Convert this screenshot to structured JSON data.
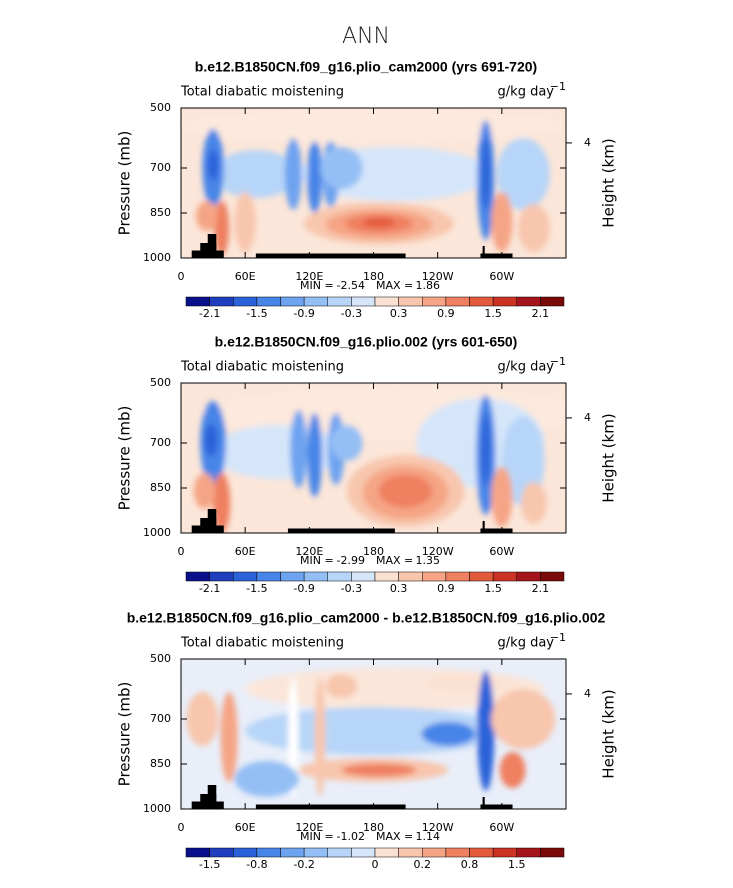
{
  "title": "ANN",
  "chart_data": [
    {
      "type": "contour",
      "title": "b.e12.B1850CN.f09_g16.plio_cam2000 (yrs 691-720)",
      "left_label": "Total diabatic moistening",
      "units": "g/kg day",
      "units_exponent": "−1",
      "ylabel": "Pressure (mb)",
      "y2label": "Height (km)",
      "xlim": [
        0,
        360
      ],
      "xticks": [
        0,
        {
          "value": 60,
          "label": "60E"
        },
        {
          "value": 120,
          "label": "120E"
        },
        180,
        {
          "value": 240,
          "label": "120W"
        },
        {
          "value": 300,
          "label": "60W"
        }
      ],
      "ylim": [
        1000,
        500
      ],
      "yticks": [
        500,
        700,
        850,
        1000
      ],
      "y2ticks": [
        4
      ],
      "min_label": "MIN =",
      "min": -2.54,
      "max_label": "MAX =",
      "max": 1.86,
      "colorbar": {
        "labels": [
          -2.1,
          -1.5,
          -0.9,
          -0.3,
          0.3,
          0.9,
          1.5,
          2.1
        ],
        "colors": [
          "#08108c",
          "#1f3fbf",
          "#2b62d9",
          "#4785e8",
          "#6ea3f0",
          "#94bff5",
          "#b7d5f8",
          "#d6e6fa",
          "#fbe1d2",
          "#f8c6ad",
          "#f5a585",
          "#ef8061",
          "#e45a3d",
          "#cc3324",
          "#a5141a",
          "#7a0a0a"
        ]
      }
    },
    {
      "type": "contour",
      "title": "b.e12.B1850CN.f09_g16.plio.002 (yrs 601-650)",
      "left_label": "Total diabatic moistening",
      "units": "g/kg day",
      "units_exponent": "−1",
      "ylabel": "Pressure (mb)",
      "y2label": "Height (km)",
      "xlim": [
        0,
        360
      ],
      "xticks": [
        0,
        {
          "value": 60,
          "label": "60E"
        },
        {
          "value": 120,
          "label": "120E"
        },
        180,
        {
          "value": 240,
          "label": "120W"
        },
        {
          "value": 300,
          "label": "60W"
        }
      ],
      "ylim": [
        1000,
        500
      ],
      "yticks": [
        500,
        700,
        850,
        1000
      ],
      "y2ticks": [
        4
      ],
      "min_label": "MIN =",
      "min": -2.99,
      "max_label": "MAX =",
      "max": 1.35,
      "colorbar": {
        "labels": [
          -2.1,
          -1.5,
          -0.9,
          -0.3,
          0.3,
          0.9,
          1.5,
          2.1
        ],
        "colors": [
          "#08108c",
          "#1f3fbf",
          "#2b62d9",
          "#4785e8",
          "#6ea3f0",
          "#94bff5",
          "#b7d5f8",
          "#d6e6fa",
          "#fbe1d2",
          "#f8c6ad",
          "#f5a585",
          "#ef8061",
          "#e45a3d",
          "#cc3324",
          "#a5141a",
          "#7a0a0a"
        ]
      }
    },
    {
      "type": "contour",
      "title": "b.e12.B1850CN.f09_g16.plio_cam2000 - b.e12.B1850CN.f09_g16.plio.002",
      "left_label": "Total diabatic moistening",
      "units": "g/kg day",
      "units_exponent": "−1",
      "ylabel": "Pressure (mb)",
      "y2label": "Height (km)",
      "xlim": [
        0,
        360
      ],
      "xticks": [
        0,
        {
          "value": 60,
          "label": "60E"
        },
        {
          "value": 120,
          "label": "120E"
        },
        180,
        {
          "value": 240,
          "label": "120W"
        },
        {
          "value": 300,
          "label": "60W"
        }
      ],
      "ylim": [
        1000,
        500
      ],
      "yticks": [
        500,
        700,
        850,
        1000
      ],
      "y2ticks": [
        4
      ],
      "min_label": "MIN =",
      "min": -1.02,
      "max_label": "MAX =",
      "max": 1.14,
      "colorbar": {
        "labels": [
          -1.5,
          -0.8,
          -0.2,
          0,
          0.2,
          0.8,
          1.5
        ],
        "colors": [
          "#08108c",
          "#1f3fbf",
          "#2b62d9",
          "#4785e8",
          "#6ea3f0",
          "#94bff5",
          "#b7d5f8",
          "#d6e6fa",
          "#fbe1d2",
          "#f8c6ad",
          "#f5a585",
          "#ef8061",
          "#e45a3d",
          "#cc3324",
          "#a5141a",
          "#7a0a0a"
        ]
      }
    }
  ]
}
